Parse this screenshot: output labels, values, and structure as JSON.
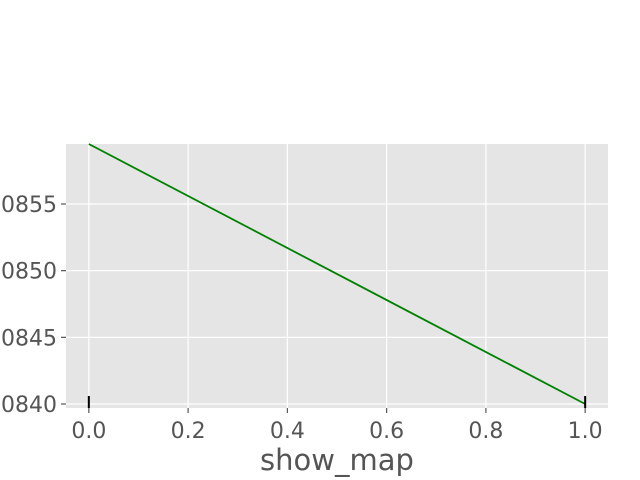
{
  "chart_data": {
    "type": "line",
    "title": "",
    "xlabel": "show_map",
    "ylabel": "",
    "x_ticks": [
      "0.0",
      "0.2",
      "0.4",
      "0.6",
      "0.8",
      "1.0"
    ],
    "y_ticks": [
      {
        "value": 0.084,
        "label": "0840"
      },
      {
        "value": 0.0845,
        "label": "0845"
      },
      {
        "value": 0.085,
        "label": "0850"
      },
      {
        "value": 0.0855,
        "label": "0855"
      }
    ],
    "xlim": [
      -0.046,
      1.046
    ],
    "ylim": [
      0.08397,
      0.08595
    ],
    "grid": true,
    "colors": {
      "background": "#e5e5e5",
      "grid": "#ffffff",
      "line": "#008000",
      "marker": "#000000",
      "tick_label": "#555555"
    },
    "series": [
      {
        "x": [
          0.0,
          1.0
        ],
        "y": [
          0.08595,
          0.084
        ]
      }
    ],
    "rug_markers": {
      "x": [
        0.0,
        1.0
      ]
    }
  }
}
